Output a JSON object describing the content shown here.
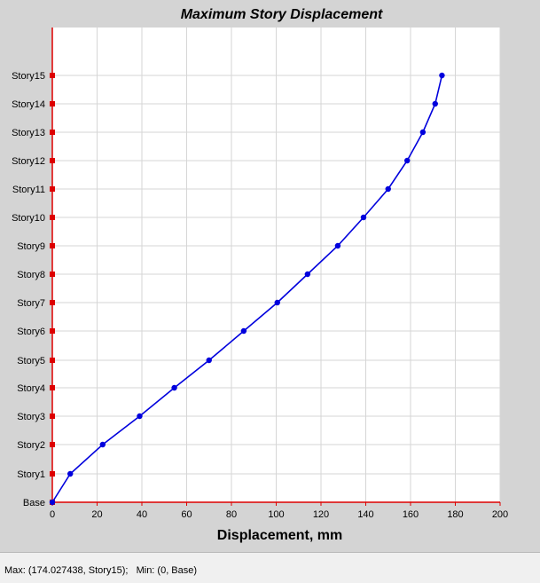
{
  "status": {
    "text": "Max: (174.027438, Story15);   Min: (0, Base)"
  },
  "chart_data": {
    "type": "line",
    "title": "Maximum Story Displacement",
    "xlabel": "Displacement, mm",
    "ylabel": "",
    "xlim": [
      0,
      200
    ],
    "x_ticks": [
      0,
      20,
      40,
      60,
      80,
      100,
      120,
      140,
      160,
      180,
      200
    ],
    "grid": true,
    "colors": {
      "series": "#0000dd",
      "axis": "#dd0000",
      "grid": "#d6d6d6",
      "plot_bg": "#ffffff",
      "panel_bg": "#d4d4d4"
    },
    "categories": [
      "Base",
      "Story1",
      "Story2",
      "Story3",
      "Story4",
      "Story5",
      "Story6",
      "Story7",
      "Story8",
      "Story9",
      "Story10",
      "Story11",
      "Story12",
      "Story13",
      "Story14",
      "Story15"
    ],
    "series": [
      {
        "values": [
          0,
          8,
          22.5,
          39,
          54.5,
          70,
          85.5,
          100.5,
          114,
          127.5,
          139,
          150,
          158.5,
          165.5,
          171,
          174.027438
        ]
      }
    ]
  }
}
